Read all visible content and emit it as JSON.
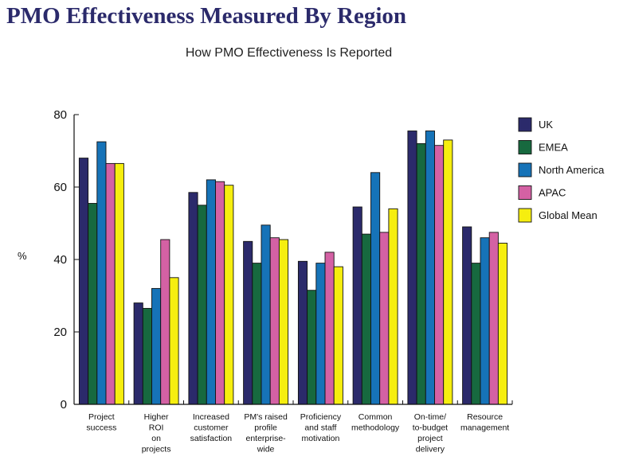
{
  "page": {
    "title": "PMO Effectiveness Measured By Region"
  },
  "chart_data": {
    "type": "bar",
    "title": "How PMO Effectiveness Is Reported",
    "ylabel": "%",
    "xlabel": "",
    "ylim": [
      0,
      80
    ],
    "yticks": [
      0,
      20,
      40,
      60,
      80
    ],
    "grid": false,
    "legend_position": "right",
    "categories": [
      [
        "Project",
        "success"
      ],
      [
        "Higher",
        "ROI",
        "on",
        "projects"
      ],
      [
        "Increased",
        "customer",
        "satisfaction"
      ],
      [
        "PM's raised",
        "profile",
        "enterprise-",
        "wide"
      ],
      [
        "Proficiency",
        "and staff",
        "motivation"
      ],
      [
        "Common",
        "methodology"
      ],
      [
        "On-time/",
        "to-budget",
        "project",
        "delivery"
      ],
      [
        "Resource",
        "management"
      ]
    ],
    "series": [
      {
        "name": "UK",
        "color": "#2b2a6b",
        "values": [
          68,
          28,
          58.5,
          45,
          39.5,
          54.5,
          75.5,
          49
        ]
      },
      {
        "name": "EMEA",
        "color": "#17693f",
        "values": [
          55.5,
          26.5,
          55,
          39,
          31.5,
          47,
          72,
          39
        ]
      },
      {
        "name": "North America",
        "color": "#1673b8",
        "values": [
          72.5,
          32,
          62,
          49.5,
          39,
          64,
          75.5,
          46
        ]
      },
      {
        "name": "APAC",
        "color": "#d461a4",
        "values": [
          66.5,
          45.5,
          61.5,
          46,
          42,
          47.5,
          71.5,
          47.5
        ]
      },
      {
        "name": "Global Mean",
        "color": "#f6ee0f",
        "values": [
          66.5,
          35,
          60.5,
          45.5,
          38,
          54,
          73,
          44.5
        ]
      }
    ]
  }
}
